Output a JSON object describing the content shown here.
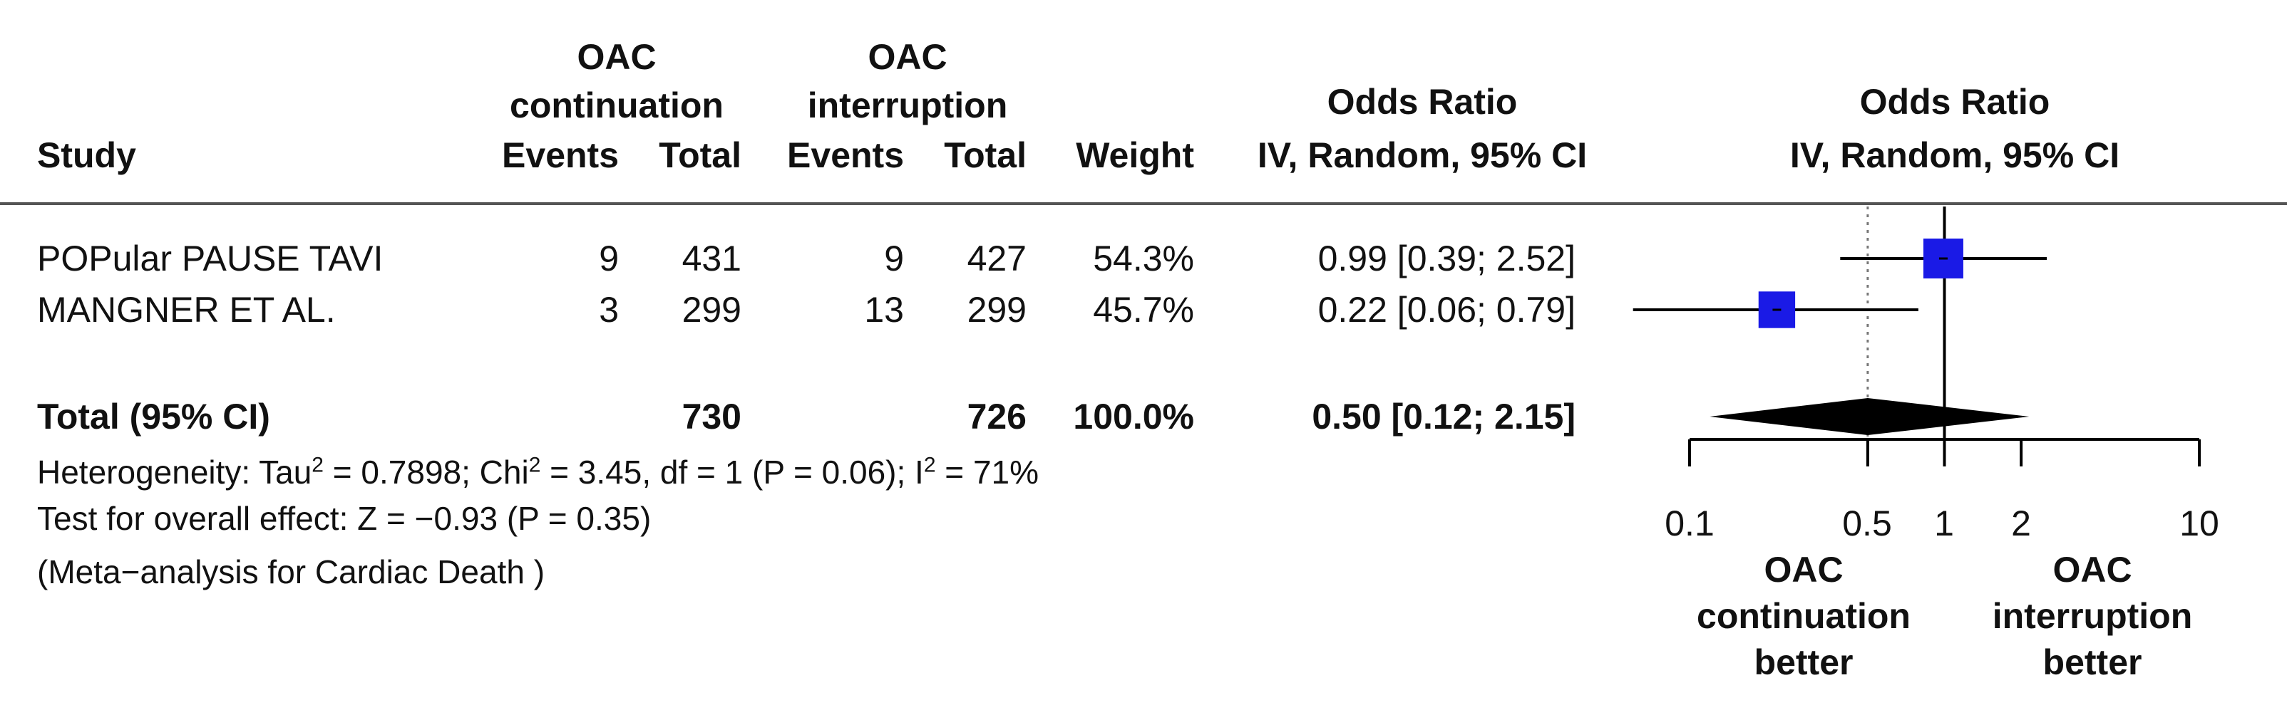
{
  "chart_data": {
    "type": "forest",
    "header": {
      "study": "Study",
      "group1_line1": "OAC",
      "group1_line2": "continuation",
      "group2_line1": "OAC",
      "group2_line2": "interruption",
      "events": "Events",
      "total": "Total",
      "weight": "Weight",
      "or_line1": "Odds Ratio",
      "or_line2": "IV, Random, 95% CI",
      "plot_line1": "Odds Ratio",
      "plot_line2": "IV, Random, 95% CI"
    },
    "studies": [
      {
        "name": "POPular PAUSE TAVI",
        "events1": "9",
        "total1": "431",
        "events2": "9",
        "total2": "427",
        "weight": "54.3%",
        "ci_text": "0.99 [0.39; 2.52]",
        "or": 0.99,
        "lower": 0.39,
        "upper": 2.52,
        "weight_value": 54.3
      },
      {
        "name": "MANGNER ET AL.",
        "events1": "3",
        "total1": "299",
        "events2": "13",
        "total2": "299",
        "weight": "45.7%",
        "ci_text": "0.22 [0.06; 0.79]",
        "or": 0.22,
        "lower": 0.06,
        "upper": 0.79,
        "weight_value": 45.7
      }
    ],
    "pooled": {
      "label": "Total (95% CI)",
      "total1": "730",
      "total2": "726",
      "weight": "100.0%",
      "ci_text": "0.50 [0.12; 2.15]",
      "or": 0.5,
      "lower": 0.12,
      "upper": 2.15
    },
    "heterogeneity": {
      "prefix": "Heterogeneity: Tau",
      "tau_sup": "2",
      "tau_value": " = 0.7898; Chi",
      "chi_sup": "2",
      "chi_value": " = 3.45, df = 1 (P = 0.06); I",
      "i_sup": "2",
      "i_value": " = 71%"
    },
    "overall_effect": "Test for overall effect: Z = −0.93 (P = 0.35)",
    "note": "(Meta−analysis for Cardiac Death )",
    "axis": {
      "scale": "log",
      "range": [
        0.1,
        10
      ],
      "ticks": [
        0.1,
        0.5,
        1,
        2,
        10
      ],
      "tick_labels": [
        "0.1",
        "0.5",
        "1",
        "2",
        "10"
      ],
      "null_line": 1,
      "reference_line": 0.5,
      "reference_style": "dotted"
    },
    "favours_left": [
      "OAC",
      "continuation",
      "better"
    ],
    "favours_right": [
      "OAC",
      "interruption",
      "better"
    ],
    "colors": {
      "square": "#1a1ae6",
      "diamond": "#000000",
      "lines": "#000000"
    }
  }
}
